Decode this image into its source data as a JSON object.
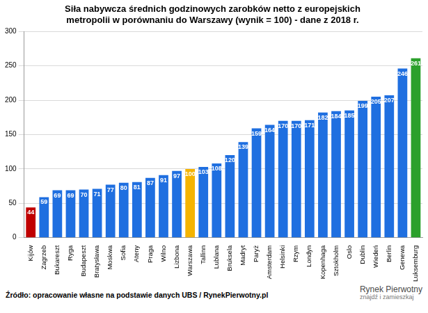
{
  "chart_data": {
    "type": "bar",
    "title": "Siła nabywcza średnich godzinowych zarobków netto z europejskich metropolii w porównaniu do Warszawy (wynik = 100) - dane z 2018 r.",
    "categories": [
      "Kijów",
      "Zagrzeb",
      "Bukareszt",
      "Ryga",
      "Budapeszt",
      "Bratysława",
      "Moskwa",
      "Sofia",
      "Ateny",
      "Praga",
      "Wilno",
      "Lizbona",
      "Warszawa",
      "Tallinn",
      "Lublana",
      "Bruksela",
      "Madryt",
      "Paryż",
      "Amsterdam",
      "Helsinki",
      "Rzym",
      "Londyn",
      "Kopenhaga",
      "Sztokholm",
      "Oslo",
      "Dublin",
      "Wiedeń",
      "Berlin",
      "Genewa",
      "Luksemburg"
    ],
    "values": [
      44,
      59,
      69,
      69,
      70,
      71,
      77,
      80,
      81,
      87,
      91,
      97,
      100,
      103,
      108,
      120,
      139,
      159,
      164,
      170,
      170,
      171,
      182,
      184,
      185,
      199,
      205,
      207,
      246,
      261
    ],
    "colors": [
      "#c00000",
      "#1f6fe0",
      "#1f6fe0",
      "#1f6fe0",
      "#1f6fe0",
      "#1f6fe0",
      "#1f6fe0",
      "#1f6fe0",
      "#1f6fe0",
      "#1f6fe0",
      "#1f6fe0",
      "#1f6fe0",
      "#f5b400",
      "#1f6fe0",
      "#1f6fe0",
      "#1f6fe0",
      "#1f6fe0",
      "#1f6fe0",
      "#1f6fe0",
      "#1f6fe0",
      "#1f6fe0",
      "#1f6fe0",
      "#1f6fe0",
      "#1f6fe0",
      "#1f6fe0",
      "#1f6fe0",
      "#1f6fe0",
      "#1f6fe0",
      "#1f6fe0",
      "#2ca02c"
    ],
    "ylim": [
      0,
      300
    ],
    "yticks": [
      0,
      50,
      100,
      150,
      200,
      250,
      300
    ],
    "grid": true,
    "data_labels": true,
    "source": "Źródło: opracowanie własne na podstawie danych UBS / RynekPierwotny.pl",
    "logo_text": [
      "Rynek Pierwotny",
      "znajdź i zamieszkaj"
    ]
  }
}
